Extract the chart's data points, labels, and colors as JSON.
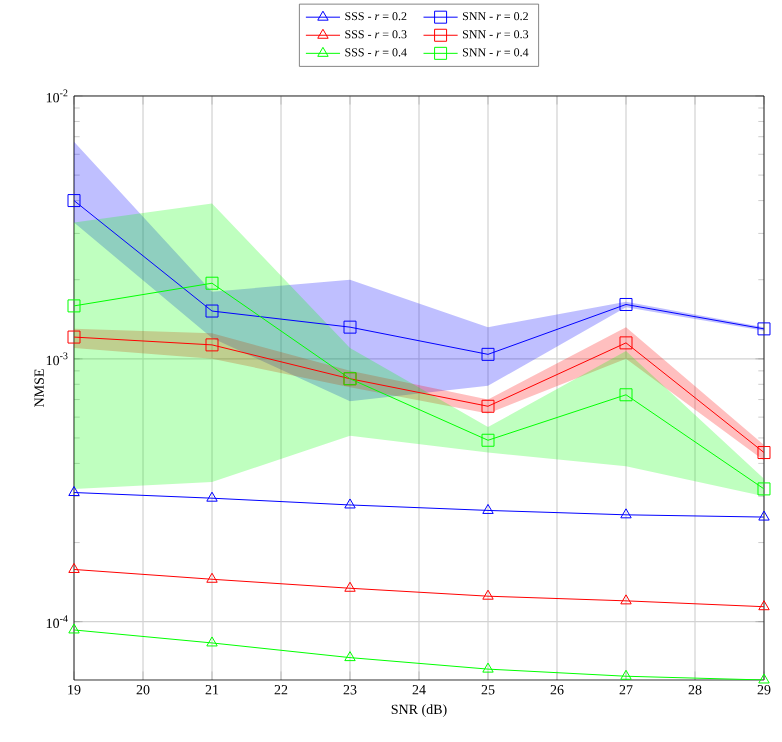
{
  "chart_data": {
    "type": "line",
    "xlabel": "SNR (dB)",
    "ylabel": "NMSE",
    "x": [
      19,
      21,
      23,
      25,
      27,
      29
    ],
    "xlim": [
      19,
      29
    ],
    "xticks": [
      19,
      20,
      21,
      22,
      23,
      24,
      25,
      26,
      27,
      28,
      29
    ],
    "ylim": [
      6e-05,
      0.01
    ],
    "log": "y",
    "yticks": [
      {
        "value": 0.0001,
        "label": "10$^{-4}$"
      },
      {
        "value": 0.001,
        "label": "10$^{-3}$"
      },
      {
        "value": 0.01,
        "label": "10$^{-2}$"
      }
    ],
    "grid": true,
    "legend": "top",
    "series": [
      {
        "name": "SSS - *r* = 0.2",
        "color": "#0000ff",
        "marker": "triangle",
        "values": [
          0.00031,
          0.000295,
          0.000278,
          0.000265,
          0.000255,
          0.00025
        ]
      },
      {
        "name": "SNN - *r* = 0.2",
        "color": "#0000ff",
        "marker": "square",
        "values": [
          0.004,
          0.00152,
          0.00132,
          0.00104,
          0.00161,
          0.0013
        ],
        "lower": [
          0.0033,
          0.0012,
          0.00069,
          0.00079,
          0.00157,
          0.00128
        ],
        "upper": [
          0.0067,
          0.0018,
          0.002,
          0.00132,
          0.00165,
          0.00132
        ]
      },
      {
        "name": "SSS - *r* = 0.3",
        "color": "#ff0000",
        "marker": "triangle",
        "values": [
          0.000158,
          0.000145,
          0.000134,
          0.000125,
          0.00012,
          0.000114
        ]
      },
      {
        "name": "SNN - *r* = 0.3",
        "color": "#ff0000",
        "marker": "square",
        "values": [
          0.00121,
          0.00113,
          0.00084,
          0.00066,
          0.00115,
          0.00044
        ],
        "lower": [
          0.0011,
          0.001,
          0.00078,
          0.00062,
          0.001,
          0.00041
        ],
        "upper": [
          0.0013,
          0.00125,
          0.0009,
          0.0007,
          0.00132,
          0.00047
        ]
      },
      {
        "name": "SSS - *r* = 0.4",
        "color": "#00ff00",
        "marker": "triangle",
        "values": [
          9.3e-05,
          8.3e-05,
          7.3e-05,
          6.6e-05,
          6.2e-05,
          6e-05
        ]
      },
      {
        "name": "SNN - *r* = 0.4",
        "color": "#00ff00",
        "marker": "square",
        "values": [
          0.00159,
          0.00194,
          0.00084,
          0.00049,
          0.00073,
          0.00032
        ],
        "lower": [
          0.00032,
          0.00034,
          0.00051,
          0.00044,
          0.00039,
          0.0003
        ],
        "upper": [
          0.0033,
          0.0039,
          0.0011,
          0.00055,
          0.00107,
          0.00035
        ]
      }
    ]
  }
}
